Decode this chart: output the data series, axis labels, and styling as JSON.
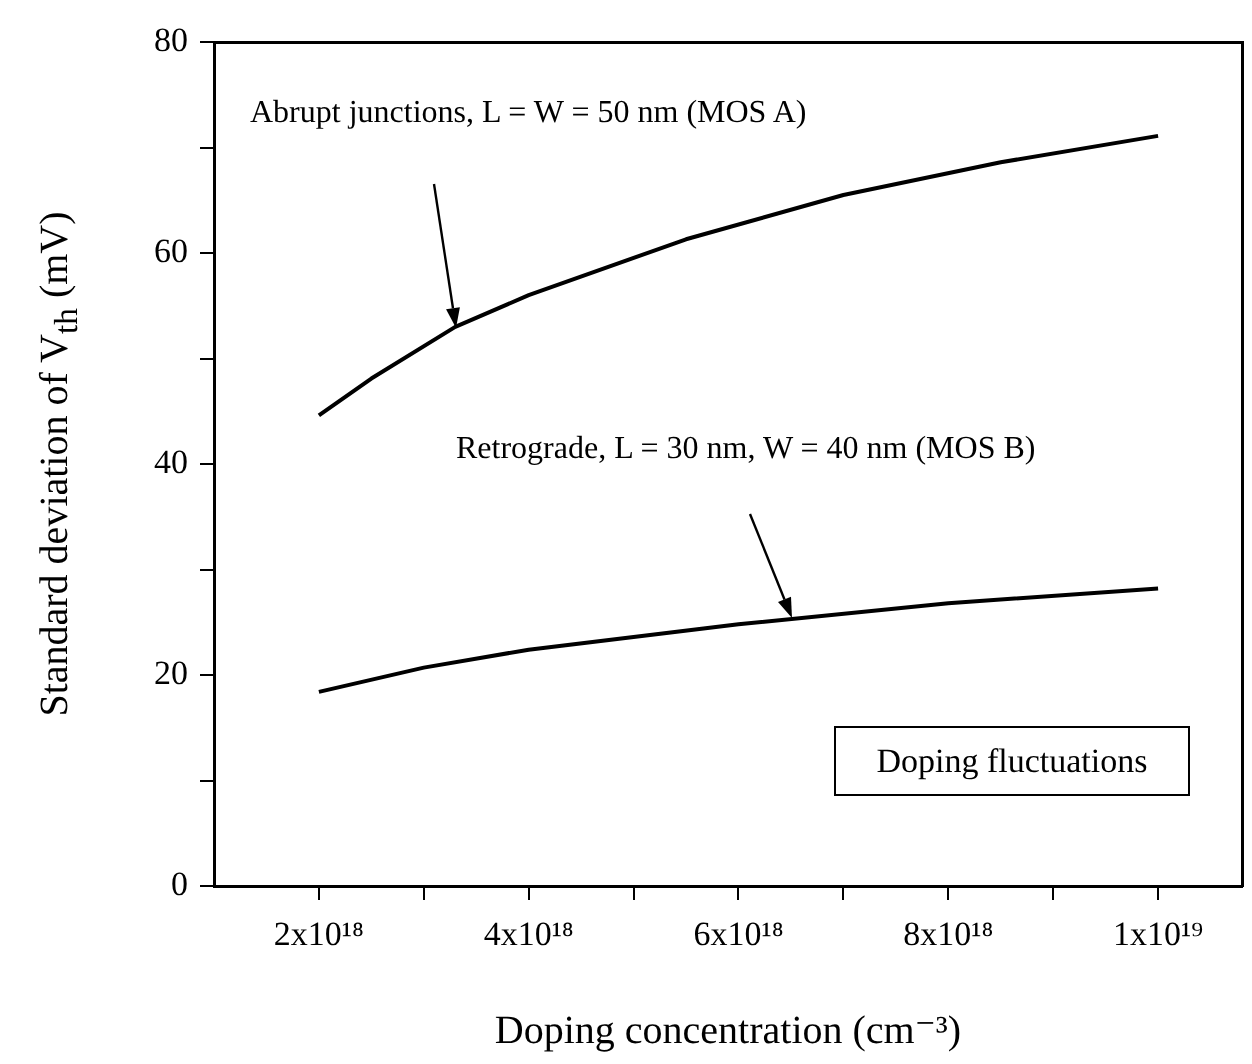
{
  "chart_data": {
    "type": "line",
    "xlabel": "Doping concentration (cm⁻³)",
    "ylabel": "Standard deviation of V$_{th}$ (mV)",
    "series": [
      {
        "color": "#000000",
        "x": [
          2e+18,
          2.5e+18,
          3.3e+18,
          4e+18,
          5.5e+18,
          7e+18,
          8.5e+18,
          1e+19
        ],
        "values": [
          44.6,
          48.1,
          53,
          56,
          61.3,
          65.5,
          68.6,
          71.1
        ]
      },
      {
        "color": "#000000",
        "x": [
          2e+18,
          3e+18,
          4e+18,
          6e+18,
          8e+18,
          1e+19
        ],
        "values": [
          18.4,
          20.7,
          22.4,
          24.8,
          26.8,
          28.2
        ]
      }
    ],
    "xlim": [
      1e+18,
      1.08e+19
    ],
    "ylim": [
      0,
      80
    ],
    "xticks": [
      {
        "value": 2e+18,
        "label": "2x10¹⁸"
      },
      {
        "value": 3e+18,
        "label": null
      },
      {
        "value": 4e+18,
        "label": "4x10¹⁸"
      },
      {
        "value": 5e+18,
        "label": null
      },
      {
        "value": 6e+18,
        "label": "6x10¹⁸"
      },
      {
        "value": 7e+18,
        "label": null
      },
      {
        "value": 8e+18,
        "label": "8x10¹⁸"
      },
      {
        "value": 9e+18,
        "label": null
      },
      {
        "value": 1e+19,
        "label": "1x10¹⁹"
      }
    ],
    "yticks": [
      0,
      {
        "value": 10,
        "label": null
      },
      20,
      {
        "value": 30,
        "label": null
      },
      40,
      {
        "value": 50,
        "label": null
      },
      60,
      {
        "value": 70,
        "label": null
      },
      80
    ],
    "grid": false,
    "legend": false,
    "marker": "none",
    "line_style": "solid",
    "annotations": [
      "Abrupt junctions, L = W = 50 nm (MOS A)",
      "Retrograde, L = 30 nm, W = 40 nm (MOS B)",
      "Doping fluctuations"
    ]
  }
}
